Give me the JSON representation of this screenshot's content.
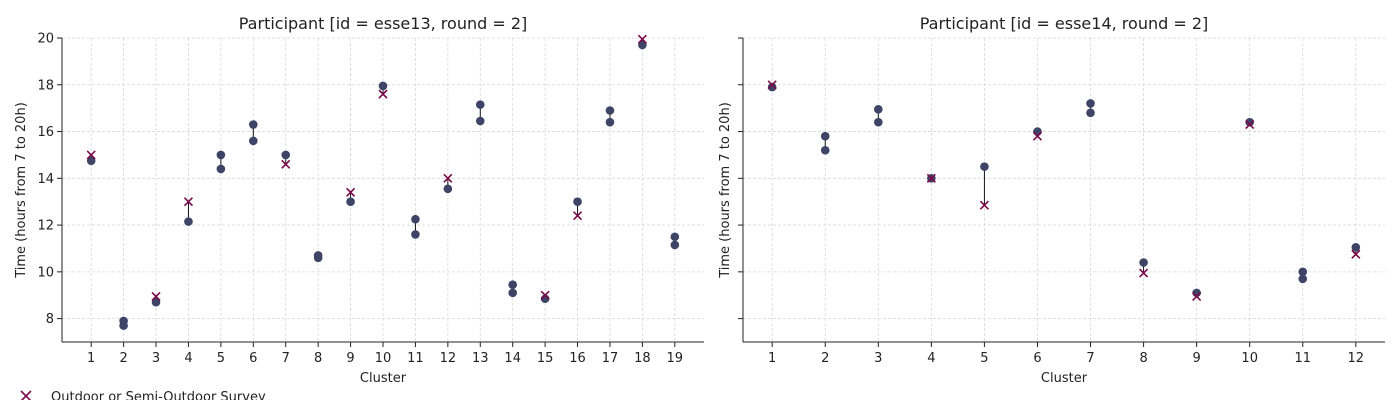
{
  "colors": {
    "dot": "#3d4466",
    "cross": "#7a0a4a",
    "stem": "#111111",
    "grid": "#d8d8d8",
    "axis": "#222222"
  },
  "legend": {
    "items": [
      {
        "marker": "x",
        "label": "Outdoor or Semi-Outdoor Survey"
      }
    ]
  },
  "chart_data": [
    {
      "type": "scatter",
      "title": "Participant [id = esse13, round = 2]",
      "xlabel": "Cluster",
      "ylabel": "Time (hours from 7 to 20h)",
      "ylim": [
        7,
        20
      ],
      "xlim": [
        0.1,
        19.9
      ],
      "categories": [
        1,
        2,
        3,
        4,
        5,
        6,
        7,
        8,
        9,
        10,
        11,
        12,
        13,
        14,
        15,
        16,
        17,
        18,
        19
      ],
      "yticks": [
        8,
        10,
        12,
        14,
        16,
        18,
        20
      ],
      "show_ytick_labels": true,
      "grid": true,
      "series": [
        {
          "marker": "o",
          "points": [
            [
              1,
              14.75
            ],
            [
              2,
              7.7
            ],
            [
              2,
              7.9
            ],
            [
              3,
              8.7
            ],
            [
              4,
              12.15
            ],
            [
              5,
              14.4
            ],
            [
              5,
              15.0
            ],
            [
              6,
              15.6
            ],
            [
              6,
              16.3
            ],
            [
              7,
              15.0
            ],
            [
              8,
              10.6
            ],
            [
              8,
              10.7
            ],
            [
              9,
              13.0
            ],
            [
              10,
              17.95
            ],
            [
              11,
              11.6
            ],
            [
              11,
              12.25
            ],
            [
              12,
              13.55
            ],
            [
              13,
              16.45
            ],
            [
              13,
              17.15
            ],
            [
              14,
              9.1
            ],
            [
              14,
              9.45
            ],
            [
              15,
              8.85
            ],
            [
              16,
              13.0
            ],
            [
              17,
              16.4
            ],
            [
              17,
              16.9
            ],
            [
              18,
              19.7
            ],
            [
              19,
              11.15
            ],
            [
              19,
              11.5
            ]
          ]
        },
        {
          "marker": "x",
          "points": [
            [
              1,
              15.0
            ],
            [
              3,
              8.95
            ],
            [
              4,
              13.0
            ],
            [
              7,
              14.6
            ],
            [
              9,
              13.4
            ],
            [
              10,
              17.6
            ],
            [
              12,
              14.0
            ],
            [
              15,
              9.0
            ],
            [
              16,
              12.4
            ],
            [
              18,
              19.95
            ]
          ]
        }
      ],
      "stems": [
        [
          1,
          14.75,
          15.0
        ],
        [
          2,
          7.7,
          7.9
        ],
        [
          3,
          8.7,
          8.95
        ],
        [
          4,
          12.15,
          13.0
        ],
        [
          5,
          14.4,
          15.0
        ],
        [
          6,
          15.6,
          16.3
        ],
        [
          7,
          14.6,
          15.0
        ],
        [
          8,
          10.6,
          10.7
        ],
        [
          9,
          13.0,
          13.4
        ],
        [
          10,
          17.6,
          17.95
        ],
        [
          11,
          11.6,
          12.25
        ],
        [
          12,
          13.55,
          14.0
        ],
        [
          13,
          16.45,
          17.15
        ],
        [
          14,
          9.1,
          9.45
        ],
        [
          15,
          8.85,
          9.0
        ],
        [
          16,
          12.4,
          13.0
        ],
        [
          17,
          16.4,
          16.9
        ],
        [
          18,
          19.7,
          19.95
        ],
        [
          19,
          11.15,
          11.5
        ]
      ]
    },
    {
      "type": "scatter",
      "title": "Participant [id = esse14, round = 2]",
      "xlabel": "Cluster",
      "ylabel": "Time (hours from 7 to 20h)",
      "ylim": [
        7,
        20
      ],
      "xlim": [
        0.45,
        12.55
      ],
      "categories": [
        1,
        2,
        3,
        4,
        5,
        6,
        7,
        8,
        9,
        10,
        11,
        12
      ],
      "yticks": [
        8,
        10,
        12,
        14,
        16,
        18,
        20
      ],
      "show_ytick_labels": false,
      "grid": true,
      "series": [
        {
          "marker": "o",
          "points": [
            [
              1,
              17.9
            ],
            [
              2,
              15.2
            ],
            [
              2,
              15.8
            ],
            [
              3,
              16.4
            ],
            [
              3,
              16.95
            ],
            [
              4,
              14.0
            ],
            [
              5,
              14.5
            ],
            [
              6,
              16.0
            ],
            [
              7,
              16.8
            ],
            [
              7,
              17.2
            ],
            [
              8,
              10.4
            ],
            [
              9,
              9.1
            ],
            [
              10,
              16.4
            ],
            [
              11,
              9.7
            ],
            [
              11,
              10.0
            ],
            [
              12,
              11.05
            ]
          ]
        },
        {
          "marker": "x",
          "points": [
            [
              1,
              18.0
            ],
            [
              4,
              14.0
            ],
            [
              5,
              12.85
            ],
            [
              6,
              15.8
            ],
            [
              8,
              9.95
            ],
            [
              9,
              8.95
            ],
            [
              10,
              16.3
            ],
            [
              12,
              10.75
            ]
          ]
        }
      ],
      "stems": [
        [
          1,
          17.9,
          18.0
        ],
        [
          2,
          15.2,
          15.8
        ],
        [
          3,
          16.4,
          16.95
        ],
        [
          5,
          12.85,
          14.5
        ],
        [
          6,
          15.8,
          16.0
        ],
        [
          7,
          16.8,
          17.2
        ],
        [
          8,
          9.95,
          10.4
        ],
        [
          9,
          8.95,
          9.1
        ],
        [
          10,
          16.3,
          16.4
        ],
        [
          11,
          9.7,
          10.0
        ],
        [
          12,
          10.75,
          11.05
        ]
      ]
    }
  ]
}
